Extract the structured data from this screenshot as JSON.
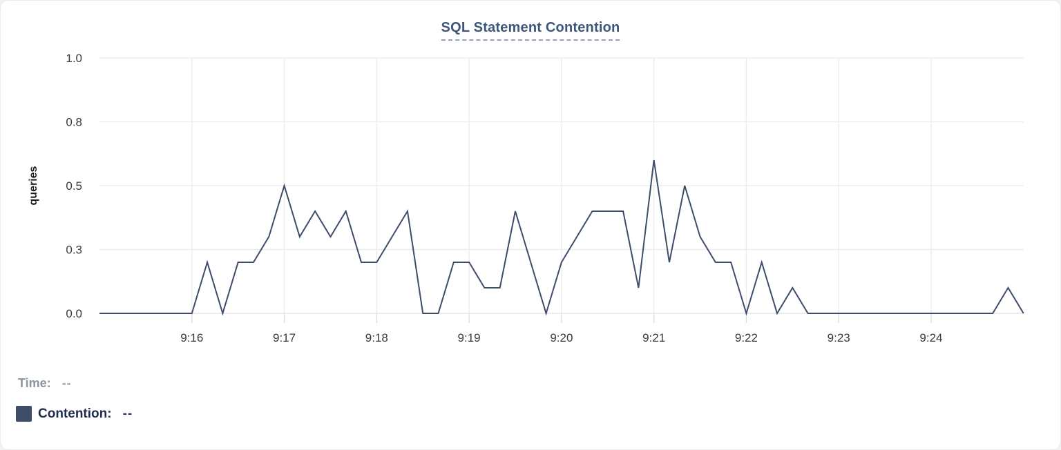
{
  "chart_data": {
    "type": "line",
    "title": "SQL Statement Contention",
    "ylabel": "queries",
    "series_name": "Contention",
    "start_time": "9:15:00",
    "end_time": "9:25:00",
    "interval_seconds": 10,
    "ylim": [
      0,
      1
    ],
    "grid": true,
    "x_ticks": [
      {
        "label": "9:16",
        "seconds": 60
      },
      {
        "label": "9:17",
        "seconds": 120
      },
      {
        "label": "9:18",
        "seconds": 180
      },
      {
        "label": "9:19",
        "seconds": 240
      },
      {
        "label": "9:20",
        "seconds": 300
      },
      {
        "label": "9:21",
        "seconds": 360
      },
      {
        "label": "9:22",
        "seconds": 420
      },
      {
        "label": "9:23",
        "seconds": 480
      },
      {
        "label": "9:24",
        "seconds": 540
      }
    ],
    "y_ticks": [
      {
        "label": "0.0",
        "value": 0
      },
      {
        "label": "0.3",
        "value": 0.25
      },
      {
        "label": "0.5",
        "value": 0.5
      },
      {
        "label": "0.8",
        "value": 0.75
      },
      {
        "label": "1.0",
        "value": 1
      }
    ],
    "values": [
      0,
      0,
      0,
      0,
      0,
      0,
      0,
      0.2,
      0,
      0.2,
      0.2,
      0.3,
      0.5,
      0.3,
      0.4,
      0.3,
      0.4,
      0.2,
      0.2,
      0.3,
      0.4,
      0,
      0,
      0.2,
      0.2,
      0.1,
      0.1,
      0.4,
      0.2,
      0,
      0.2,
      0.3,
      0.4,
      0.4,
      0.4,
      0.1,
      0.6,
      0.2,
      0.5,
      0.3,
      0.2,
      0.2,
      0,
      0.2,
      0,
      0.1,
      0,
      0,
      0,
      0,
      0,
      0,
      0,
      0,
      0,
      0,
      0,
      0,
      0,
      0.1,
      0
    ]
  },
  "legend": {
    "time_label": "Time:",
    "time_value": "--",
    "contention_label": "Contention:",
    "contention_value": "--"
  },
  "colors": {
    "line": "#3d4c6b",
    "swatch": "#3f4d68",
    "title": "#3d567a",
    "title_underline": "#93a0c0",
    "h_gridline": "#e9e9e9",
    "v_gridline": "#ececec",
    "axis_baseline": "#e0e0e0",
    "tick_mark": "#dcdcdc",
    "tick_label": "#3a3a3a"
  }
}
